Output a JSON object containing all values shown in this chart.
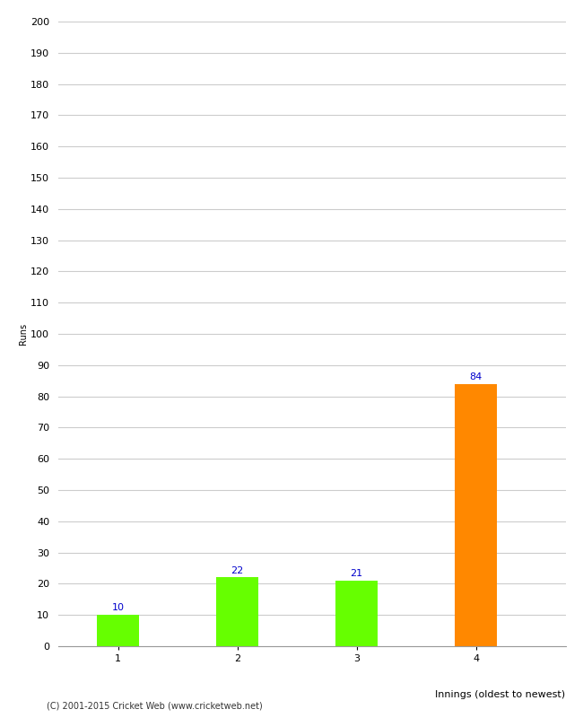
{
  "categories": [
    "1",
    "2",
    "3",
    "4"
  ],
  "values": [
    10,
    22,
    21,
    84
  ],
  "bar_colors": [
    "#66ff00",
    "#66ff00",
    "#66ff00",
    "#ff8800"
  ],
  "xlabel": "Innings (oldest to newest)",
  "ylabel": "Runs",
  "ylim": [
    0,
    200
  ],
  "yticks": [
    0,
    10,
    20,
    30,
    40,
    50,
    60,
    70,
    80,
    90,
    100,
    110,
    120,
    130,
    140,
    150,
    160,
    170,
    180,
    190,
    200
  ],
  "label_color": "#0000cc",
  "label_fontsize": 8,
  "axis_fontsize": 8,
  "ylabel_fontsize": 7,
  "xlabel_fontsize": 8,
  "background_color": "#ffffff",
  "footer_text": "(C) 2001-2015 Cricket Web (www.cricketweb.net)",
  "footer_fontsize": 7,
  "bar_width": 0.35,
  "grid_color": "#cccccc"
}
